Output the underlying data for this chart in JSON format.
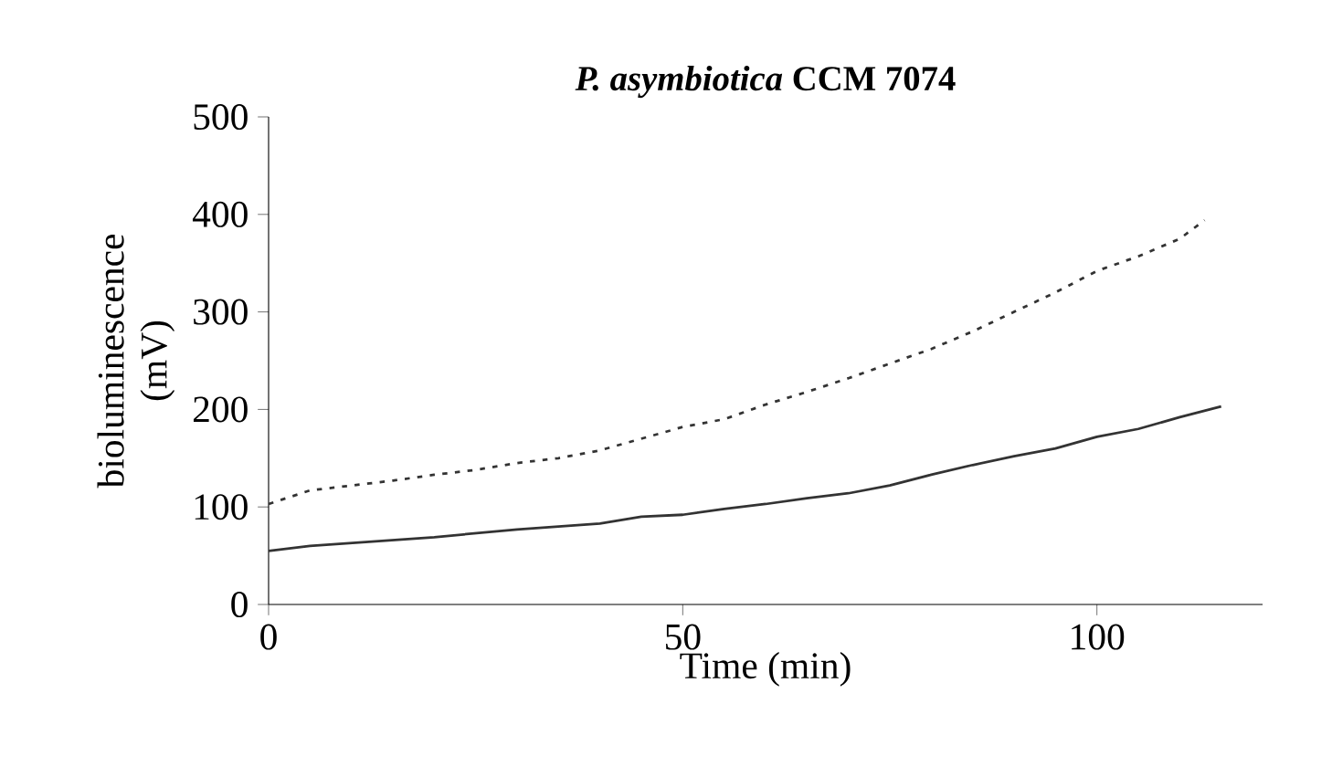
{
  "chart_data": {
    "type": "line",
    "title": "*P. asymbiotica* CCM 7074",
    "xlabel": "Time (min)",
    "ylabel": "bioluminescence (mV)",
    "xlim": [
      0,
      120
    ],
    "xticks": [
      0,
      50,
      100
    ],
    "ylim": [
      0,
      500
    ],
    "yticks": [
      0,
      100,
      200,
      300,
      400,
      500
    ],
    "grid": false,
    "marker": "none",
    "series": [
      {
        "color": "#333333",
        "line_style": "solid",
        "x": [
          0,
          5,
          10,
          15,
          20,
          25,
          30,
          35,
          40,
          45,
          50,
          55,
          60,
          65,
          70,
          75,
          80,
          85,
          90,
          95,
          100,
          105,
          110,
          115
        ],
        "values": [
          55,
          60,
          63,
          66,
          69,
          73,
          77,
          80,
          83,
          90,
          92,
          98,
          103,
          109,
          114,
          122,
          133,
          143,
          152,
          160,
          172,
          180,
          192,
          203
        ]
      },
      {
        "color": "#333333",
        "line_style": "dotted",
        "x": [
          0,
          5,
          10,
          15,
          20,
          25,
          30,
          35,
          40,
          45,
          50,
          55,
          60,
          65,
          70,
          75,
          80,
          85,
          90,
          95,
          100,
          105,
          110,
          113
        ],
        "values": [
          103,
          117,
          122,
          127,
          133,
          138,
          145,
          150,
          158,
          170,
          182,
          190,
          205,
          218,
          232,
          247,
          262,
          280,
          300,
          320,
          342,
          357,
          375,
          394
        ]
      }
    ]
  }
}
